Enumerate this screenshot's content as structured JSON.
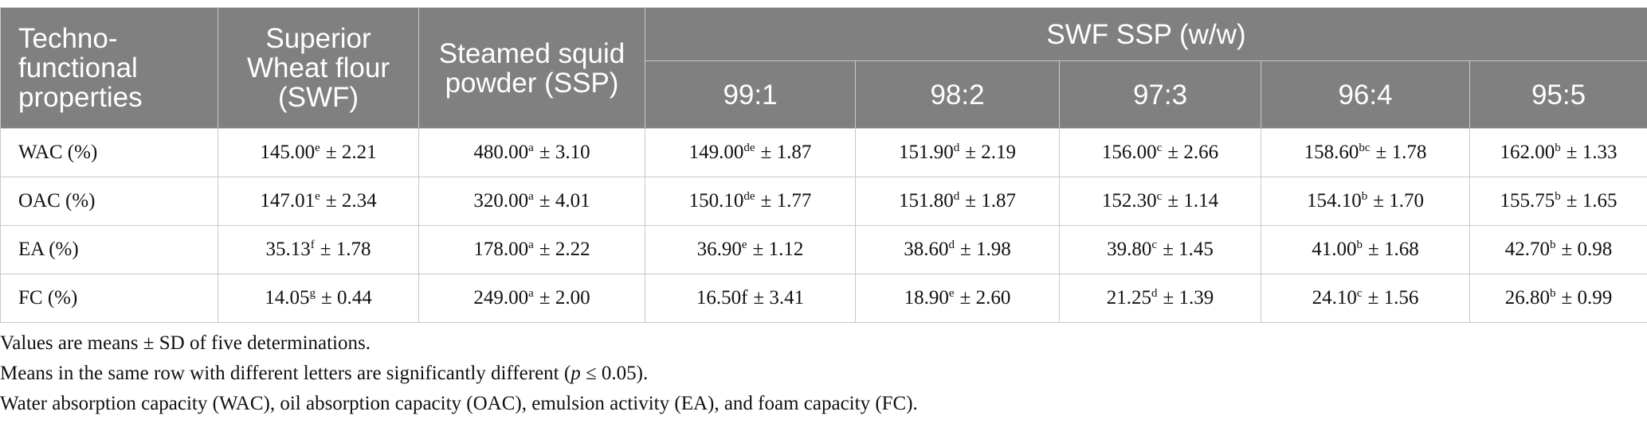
{
  "table": {
    "header": {
      "col0": "Techno-functional properties",
      "col1": "Superior Wheat flour (SWF)",
      "col2": "Steamed squid powder (SSP)",
      "group": "SWF SSP (w/w)",
      "ratios": [
        "99:1",
        "98:2",
        "97:3",
        "96:4",
        "95:5"
      ]
    },
    "rows": [
      {
        "label": "WAC (%)",
        "cells": [
          {
            "mean": "145.00",
            "sup": "e",
            "sd": "± 2.21"
          },
          {
            "mean": "480.00",
            "sup": "a",
            "sd": "± 3.10"
          },
          {
            "mean": "149.00",
            "sup": "de",
            "sd": "± 1.87"
          },
          {
            "mean": "151.90",
            "sup": "d",
            "sd": "± 2.19"
          },
          {
            "mean": "156.00",
            "sup": "c",
            "sd": "± 2.66"
          },
          {
            "mean": "158.60",
            "sup": "bc",
            "sd": "± 1.78"
          },
          {
            "mean": "162.00",
            "sup": "b",
            "sd": "± 1.33"
          }
        ]
      },
      {
        "label": "OAC (%)",
        "cells": [
          {
            "mean": "147.01",
            "sup": "e",
            "sd": "± 2.34"
          },
          {
            "mean": "320.00",
            "sup": "a",
            "sd": "± 4.01"
          },
          {
            "mean": "150.10",
            "sup": "de",
            "sd": "± 1.77"
          },
          {
            "mean": "151.80",
            "sup": "d",
            "sd": "± 1.87"
          },
          {
            "mean": "152.30",
            "sup": "c",
            "sd": "± 1.14"
          },
          {
            "mean": "154.10",
            "sup": "b",
            "sd": "± 1.70"
          },
          {
            "mean": "155.75",
            "sup": "b",
            "sd": "± 1.65"
          }
        ]
      },
      {
        "label": "EA (%)",
        "cells": [
          {
            "mean": "35.13",
            "sup": "f",
            "sd": "± 1.78"
          },
          {
            "mean": "178.00",
            "sup": "a",
            "sd": "± 2.22"
          },
          {
            "mean": "36.90",
            "sup": "e",
            "sd": "± 1.12"
          },
          {
            "mean": "38.60",
            "sup": "d",
            "sd": "± 1.98"
          },
          {
            "mean": "39.80",
            "sup": "c",
            "sd": "± 1.45"
          },
          {
            "mean": "41.00",
            "sup": "b",
            "sd": "± 1.68"
          },
          {
            "mean": "42.70",
            "sup": "b",
            "sd": "± 0.98"
          }
        ]
      },
      {
        "label": "FC (%)",
        "cells": [
          {
            "mean": "14.05",
            "sup": "g",
            "sd": "± 0.44"
          },
          {
            "mean": "249.00",
            "sup": "a",
            "sd": "± 2.00"
          },
          {
            "mean": "16.50f",
            "sd": "± 3.41"
          },
          {
            "mean": "18.90",
            "sup": "e",
            "sd": "± 2.60"
          },
          {
            "mean": "21.25",
            "sup": "d",
            "sd": "± 1.39"
          },
          {
            "mean": "24.10",
            "sup": "c",
            "sd": "± 1.56"
          },
          {
            "mean": "26.80",
            "sup": "b",
            "sd": "± 0.99"
          }
        ]
      }
    ]
  },
  "footnotes": {
    "note1": "Values are means ± SD of five determinations.",
    "note2": {
      "before": "Means in the same row with different letters are significantly different (",
      "italic": "p",
      "after": " ≤ 0.05)."
    },
    "note3": "Water absorption capacity (WAC), oil absorption capacity (OAC), emulsion activity (EA), and foam capacity (FC)."
  }
}
